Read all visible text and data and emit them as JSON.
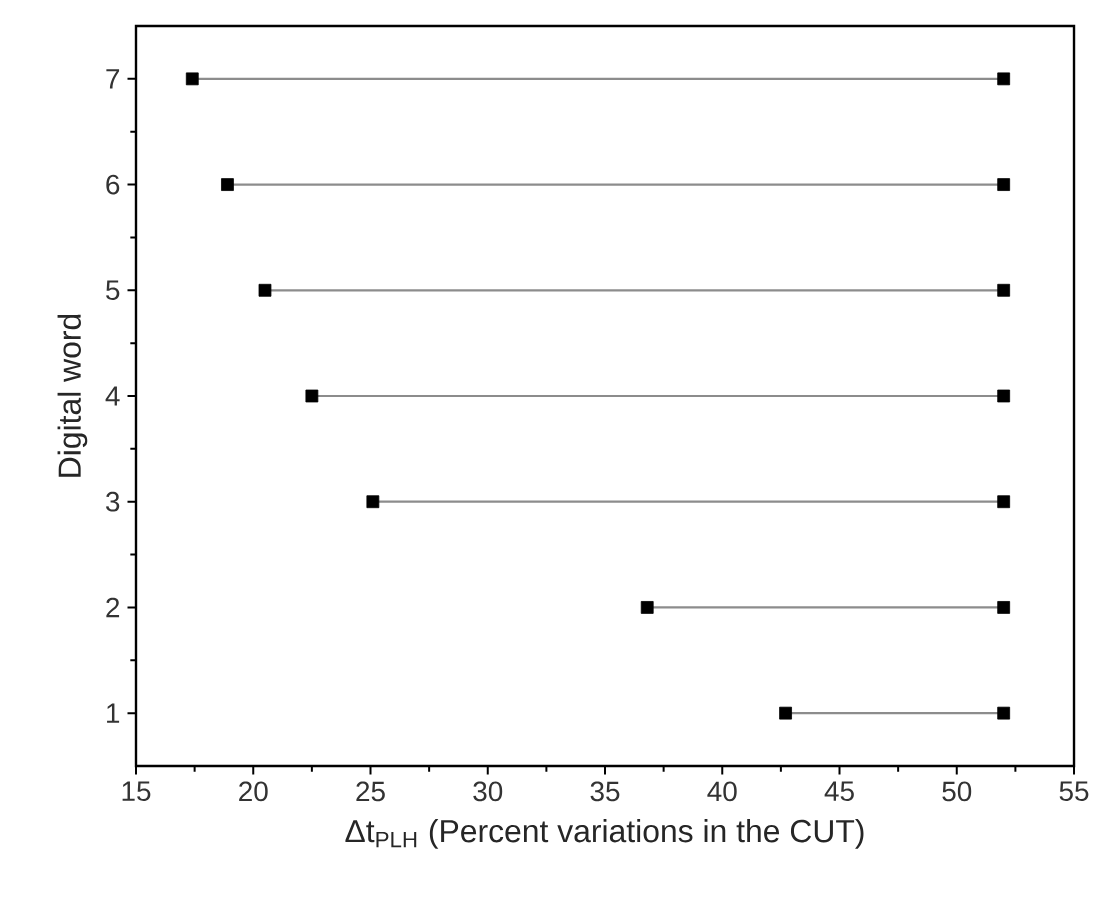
{
  "chart_data": {
    "type": "line",
    "xlabel": "Δt$_{PLH}$ (Percent variations in the CUT)",
    "ylabel": "Digital word",
    "xlim": [
      15,
      55
    ],
    "xticks": [
      15,
      20,
      25,
      30,
      35,
      40,
      45,
      50,
      55
    ],
    "ylim": [
      0.5,
      7.5
    ],
    "yticks": [
      1,
      2,
      3,
      4,
      5,
      6,
      7
    ],
    "series": [
      {
        "color": "#8c8c8c",
        "marker": "none",
        "x": [
          42.7,
          52.0
        ],
        "values": [
          1,
          1
        ]
      },
      {
        "color": "#8c8c8c",
        "marker": "none",
        "x": [
          36.8,
          52.0
        ],
        "values": [
          2,
          2
        ]
      },
      {
        "color": "#8c8c8c",
        "marker": "none",
        "x": [
          25.1,
          52.0
        ],
        "values": [
          3,
          3
        ]
      },
      {
        "color": "#8c8c8c",
        "marker": "none",
        "x": [
          22.5,
          52.0
        ],
        "values": [
          4,
          4
        ]
      },
      {
        "color": "#8c8c8c",
        "marker": "none",
        "x": [
          20.5,
          52.0
        ],
        "values": [
          5,
          5
        ]
      },
      {
        "color": "#8c8c8c",
        "marker": "none",
        "x": [
          18.9,
          52.0
        ],
        "values": [
          6,
          6
        ]
      },
      {
        "color": "#8c8c8c",
        "marker": "none",
        "x": [
          17.4,
          52.0
        ],
        "values": [
          7,
          7
        ]
      },
      {
        "type": "scatter",
        "color": "#000000",
        "marker": "square",
        "x": [
          42.7,
          36.8,
          25.1,
          22.5,
          20.5,
          18.9,
          17.4
        ],
        "values": [
          1,
          2,
          3,
          4,
          5,
          6,
          7
        ]
      },
      {
        "type": "scatter",
        "color": "#000000",
        "marker": "square",
        "x": [
          52.0,
          52.0,
          52.0,
          52.0,
          52.0,
          52.0,
          52.0
        ],
        "values": [
          1,
          2,
          3,
          4,
          5,
          6,
          7
        ]
      }
    ]
  }
}
